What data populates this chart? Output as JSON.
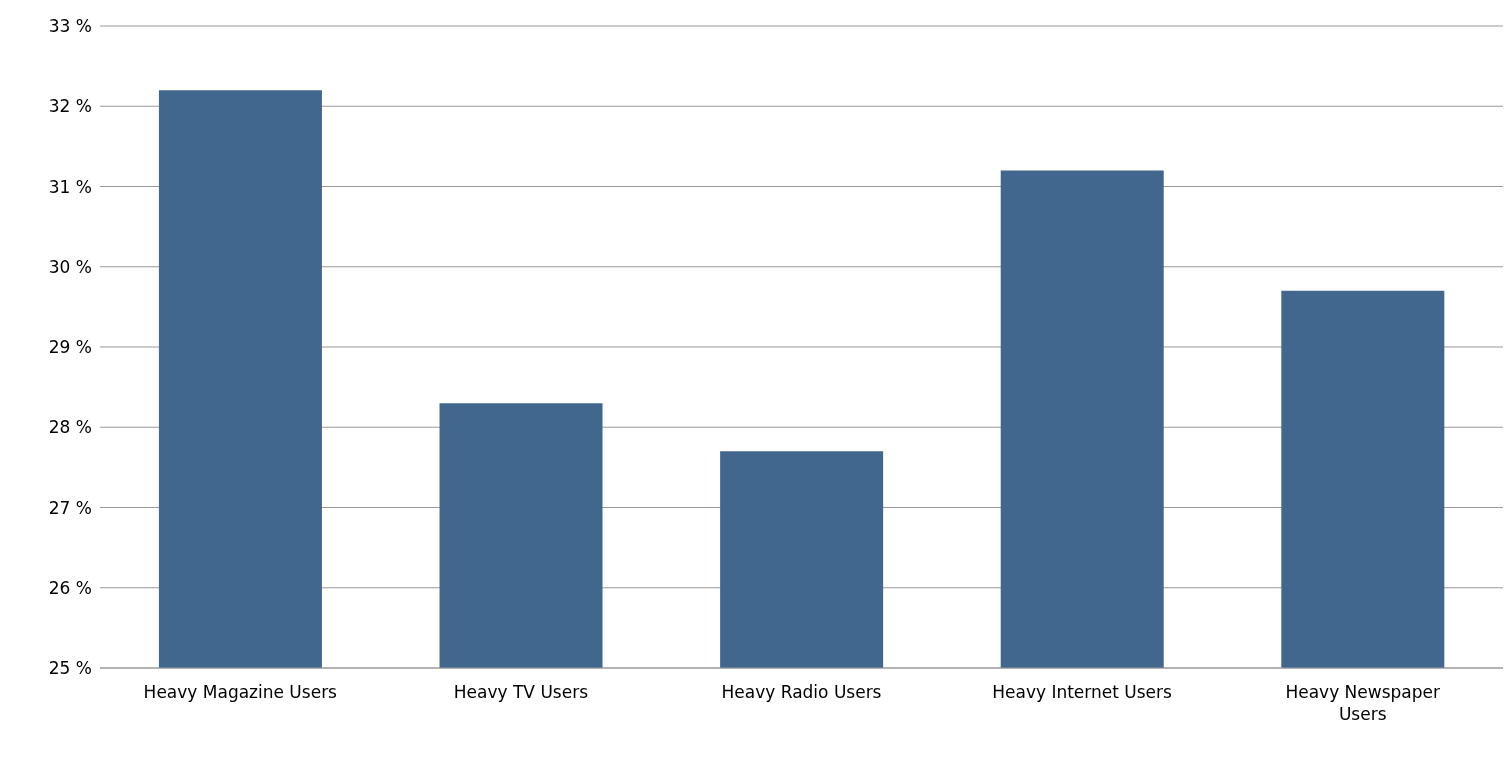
{
  "chart_data": {
    "type": "bar",
    "categories": [
      "Heavy Magazine Users",
      "Heavy TV Users",
      "Heavy Radio Users",
      "Heavy Internet Users",
      "Heavy Newspaper Users"
    ],
    "values": [
      32.2,
      28.3,
      27.7,
      31.2,
      29.7
    ],
    "color": "#42678e",
    "ylim": [
      25,
      33
    ],
    "yticks": [
      {
        "value": 25,
        "label": "25 %"
      },
      {
        "value": 26,
        "label": "26 %"
      },
      {
        "value": 27,
        "label": "27 %"
      },
      {
        "value": 28,
        "label": "28 %"
      },
      {
        "value": 29,
        "label": "29 %"
      },
      {
        "value": 30,
        "label": "30 %"
      },
      {
        "value": 31,
        "label": "31 %"
      },
      {
        "value": 32,
        "label": "32 %"
      },
      {
        "value": 33,
        "label": "33 %"
      }
    ],
    "grid": "y"
  }
}
